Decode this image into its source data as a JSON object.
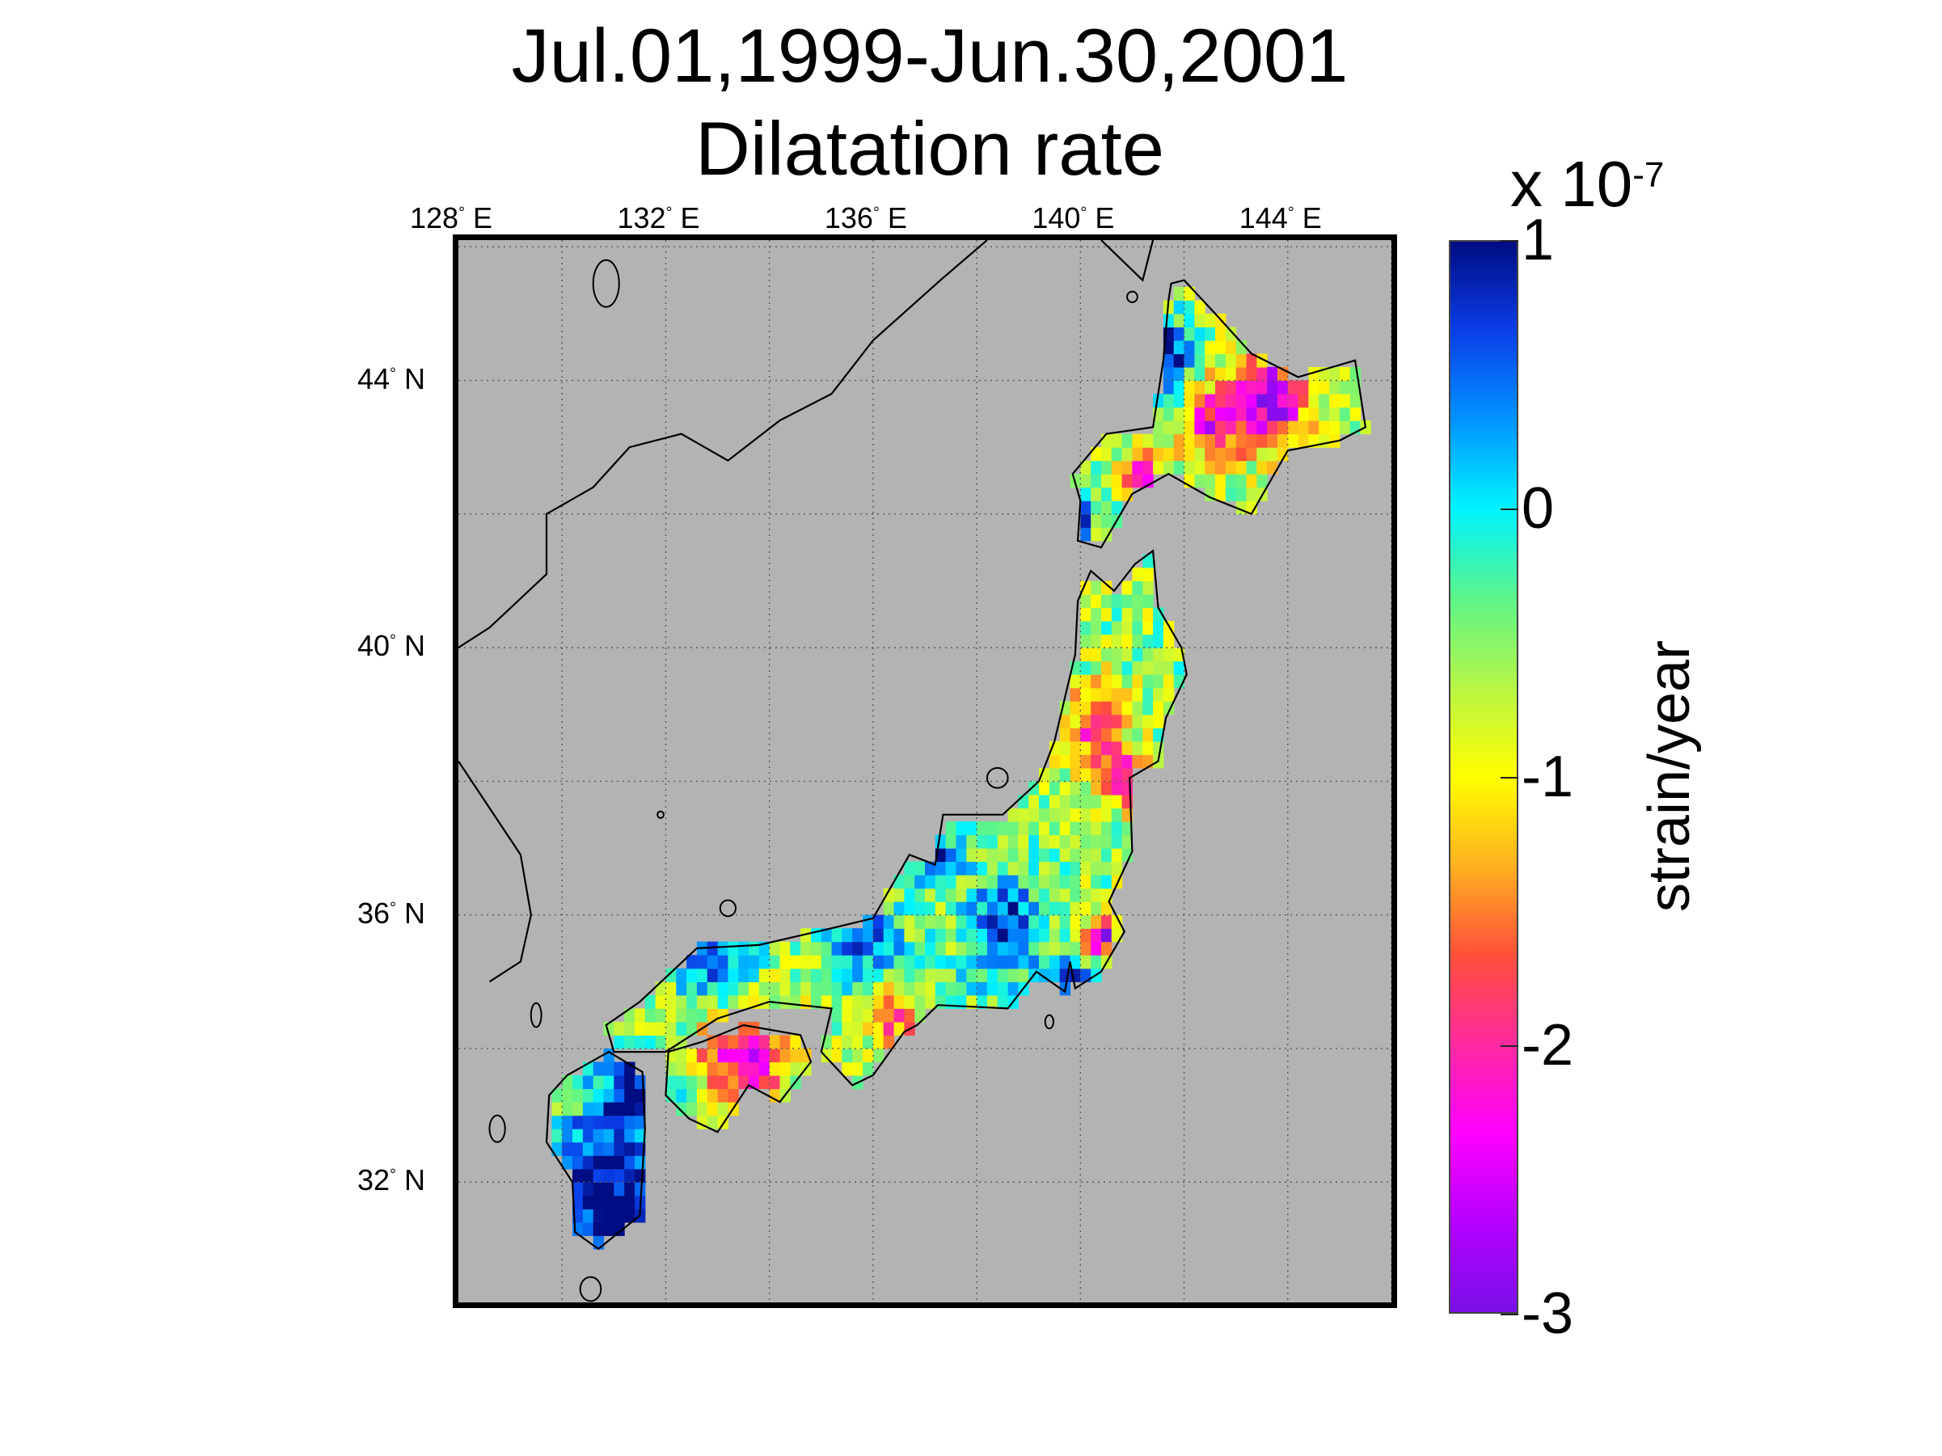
{
  "title_line1": "Jul.01,1999-Jun.30,2001",
  "title_line2": "Dilatation rate",
  "lon_ticks": [
    {
      "lon": 128,
      "label": "128",
      "suffix": " E"
    },
    {
      "lon": 132,
      "label": "132",
      "suffix": " E"
    },
    {
      "lon": 136,
      "label": "136",
      "suffix": " E"
    },
    {
      "lon": 140,
      "label": "140",
      "suffix": " E"
    },
    {
      "lon": 144,
      "label": "144",
      "suffix": " E"
    }
  ],
  "lat_ticks": [
    {
      "lat": 44,
      "label": "44",
      "suffix": " N"
    },
    {
      "lat": 40,
      "label": "40",
      "suffix": " N"
    },
    {
      "lat": 36,
      "label": "36",
      "suffix": " N"
    },
    {
      "lat": 32,
      "label": "32",
      "suffix": " N"
    }
  ],
  "map_extent": {
    "lon_min": 128,
    "lon_max": 146,
    "lat_min": 30.2,
    "lat_max": 46.1
  },
  "colorbar": {
    "scale_prefix": "x 10",
    "scale_exponent": "-7",
    "unit": "strain/year",
    "min": -3,
    "max": 1,
    "ticks": [
      "1",
      "0",
      "-1",
      "-2",
      "-3"
    ],
    "tick_values": [
      1,
      0,
      -1,
      -2,
      -3
    ],
    "colors": [
      "#000c82",
      "#0a3ee8",
      "#0094ff",
      "#00f4ff",
      "#5cf58a",
      "#b8f545",
      "#ffff00",
      "#ffb020",
      "#ff4f3a",
      "#ff2aa0",
      "#ff00ff",
      "#b400ff",
      "#7a10e8"
    ]
  },
  "colors": {
    "ocean": "#b3b3b3",
    "frame": "#000000",
    "coast": "#000000",
    "grid": "#5a5a5a"
  }
}
